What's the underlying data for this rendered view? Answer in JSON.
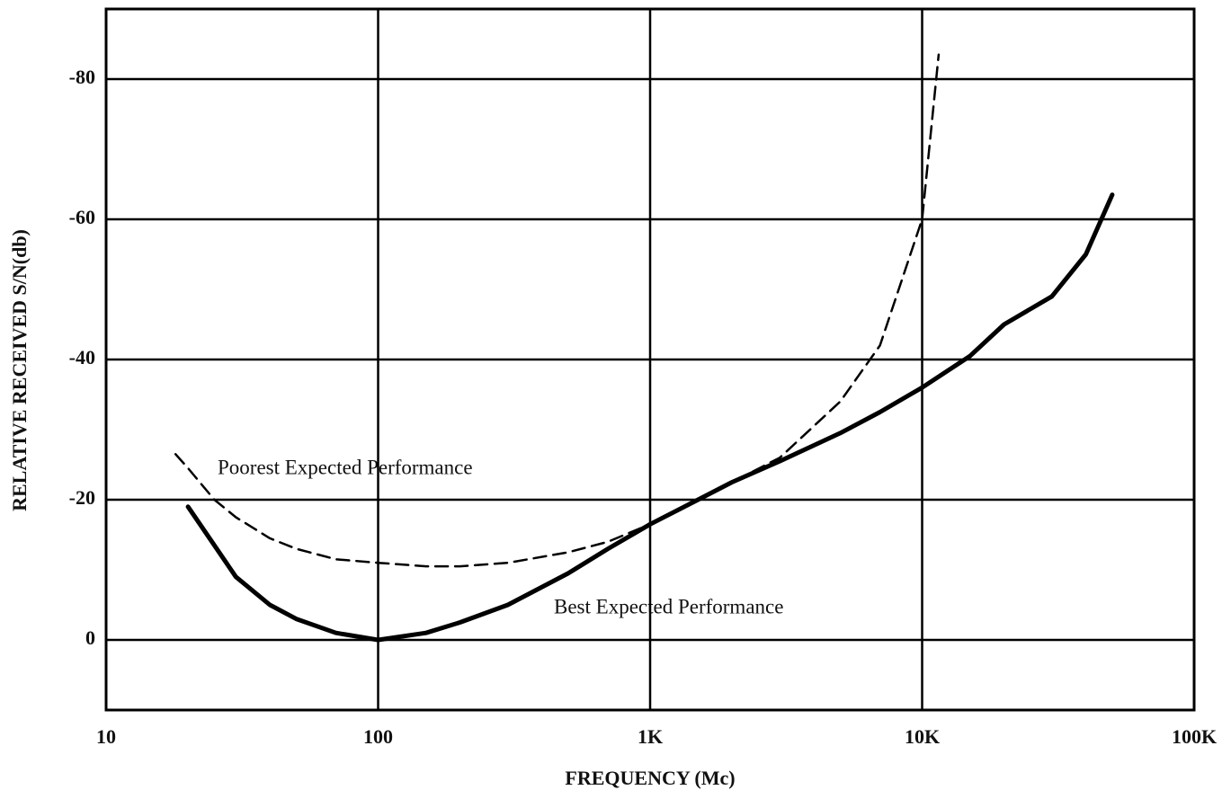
{
  "chart_data": {
    "type": "line",
    "xlabel": "FREQUENCY (Mc)",
    "ylabel": "RELATIVE RECEIVED S/N(db)",
    "xscale": "log",
    "xlim": [
      10,
      100000
    ],
    "xticks": [
      10,
      100,
      {
        "value": 1000,
        "label": "1K"
      },
      {
        "value": 10000,
        "label": "10K"
      },
      {
        "value": 100000,
        "label": "100K"
      }
    ],
    "ylim": [
      10,
      -90
    ],
    "yticks": [
      -80,
      -60,
      -40,
      -20,
      0
    ],
    "grid": true,
    "annotations": [
      "Poorest Expected Performance",
      "Best Expected Performance"
    ],
    "series": [
      {
        "name": "Best Expected Performance",
        "color": "#000000",
        "linestyle": "solid",
        "x": [
          20,
          30,
          40,
          50,
          70,
          100,
          150,
          200,
          300,
          500,
          700,
          1000,
          1500,
          2000,
          3000,
          5000,
          7000,
          10000,
          15000,
          20000,
          30000,
          40000,
          50000
        ],
        "values": [
          -19,
          -9,
          -5,
          -3,
          -1,
          0,
          -1,
          -2.5,
          -5,
          -9.5,
          -13,
          -16.5,
          -20,
          -22.5,
          -25.5,
          -29.5,
          -32.5,
          -36,
          -40.5,
          -45,
          -49,
          -55,
          -63.5
        ]
      },
      {
        "name": "Poorest Expected Performance",
        "color": "#000000",
        "linestyle": "dashed",
        "x": [
          18,
          20,
          25,
          30,
          40,
          50,
          70,
          100,
          150,
          200,
          300,
          500,
          700,
          1000,
          1500,
          2000,
          3000,
          5000,
          7000,
          10000,
          11500
        ],
        "values": [
          -26.5,
          -24.5,
          -20,
          -17.5,
          -14.5,
          -13,
          -11.5,
          -11,
          -10.5,
          -10.5,
          -11,
          -12.5,
          -14,
          -16.5,
          -20,
          -22.5,
          -26,
          -34,
          -42,
          -60,
          -83.5
        ]
      }
    ]
  }
}
